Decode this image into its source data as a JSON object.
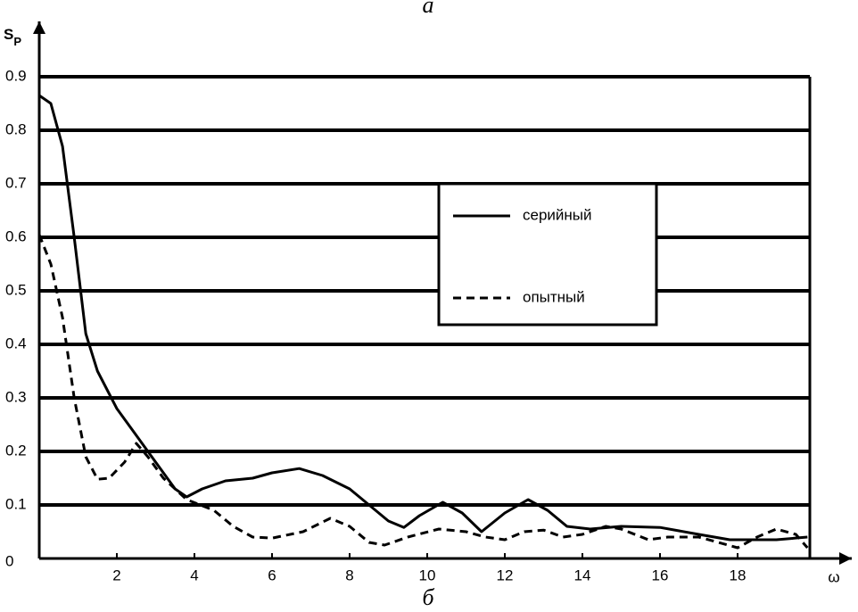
{
  "chart_data": {
    "type": "line",
    "title": "а",
    "caption": "б",
    "x_label": "ω",
    "y_label": "S",
    "y_label_sub": "P",
    "xlim": [
      0,
      20
    ],
    "ylim": [
      0,
      0.9
    ],
    "xticks": [
      2,
      4,
      6,
      8,
      10,
      12,
      14,
      16,
      18
    ],
    "yticks": [
      0,
      0.1,
      0.2,
      0.3,
      0.4,
      0.5,
      0.6,
      0.7,
      0.8,
      0.9
    ],
    "grid": true,
    "legend": "upper right",
    "series": [
      {
        "name": "серийный",
        "color": "#000000",
        "dash": "solid",
        "x": [
          0,
          0.3,
          0.6,
          0.9,
          1.2,
          1.5,
          2,
          2.5,
          3,
          3.5,
          3.8,
          4.2,
          4.8,
          5.5,
          6,
          6.7,
          7.3,
          8,
          8.5,
          9,
          9.4,
          9.8,
          10.4,
          10.9,
          11.4,
          12,
          12.6,
          13.1,
          13.6,
          14.2,
          15,
          16,
          17,
          17.8,
          18.5,
          19,
          19.8
        ],
        "values": [
          0.865,
          0.85,
          0.77,
          0.6,
          0.42,
          0.35,
          0.28,
          0.23,
          0.18,
          0.13,
          0.115,
          0.13,
          0.145,
          0.15,
          0.16,
          0.168,
          0.155,
          0.13,
          0.1,
          0.07,
          0.058,
          0.08,
          0.105,
          0.085,
          0.05,
          0.085,
          0.11,
          0.09,
          0.06,
          0.055,
          0.06,
          0.058,
          0.045,
          0.035,
          0.035,
          0.035,
          0.04
        ]
      },
      {
        "name": "опытный",
        "color": "#000000",
        "dash": "dashed",
        "x": [
          0,
          0.3,
          0.6,
          0.9,
          1.2,
          1.5,
          1.8,
          2.2,
          2.5,
          2.8,
          3.2,
          3.8,
          4.5,
          5,
          5.5,
          6,
          6.8,
          7.5,
          8,
          8.5,
          8.9,
          9.5,
          10.3,
          11,
          11.5,
          12,
          12.5,
          13,
          13.5,
          14,
          14.6,
          15,
          15.7,
          16.2,
          17,
          17.5,
          18,
          18.5,
          19,
          19.5,
          19.8
        ],
        "values": [
          0.605,
          0.55,
          0.45,
          0.3,
          0.19,
          0.148,
          0.15,
          0.18,
          0.215,
          0.19,
          0.15,
          0.11,
          0.09,
          0.06,
          0.04,
          0.038,
          0.05,
          0.075,
          0.06,
          0.03,
          0.025,
          0.04,
          0.055,
          0.05,
          0.04,
          0.035,
          0.05,
          0.053,
          0.04,
          0.045,
          0.06,
          0.055,
          0.035,
          0.04,
          0.04,
          0.03,
          0.02,
          0.04,
          0.055,
          0.045,
          0.02
        ]
      }
    ]
  }
}
